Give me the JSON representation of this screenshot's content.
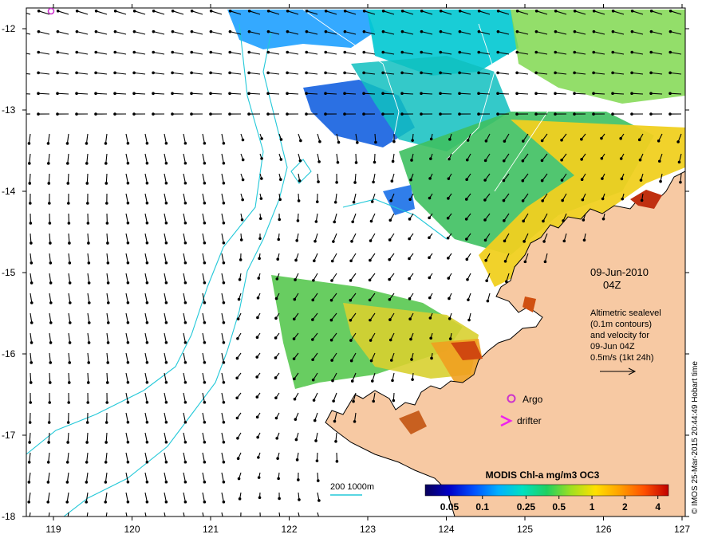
{
  "map": {
    "lon_ticks": [
      "119",
      "120",
      "121",
      "122",
      "123",
      "124",
      "125",
      "126",
      "127"
    ],
    "lat_ticks": [
      "-12",
      "-13",
      "-14",
      "-15",
      "-16",
      "-17",
      "-18"
    ],
    "colors": {
      "land": "#f7c9a3",
      "coastline": "#000000",
      "bathymetry_contour": "#22c8d8",
      "sealevel_contour": "#ffffff",
      "argo_marker": "#cc33cc",
      "drifter_marker": "#ee22ee",
      "arrows": "#000000"
    }
  },
  "date_label": {
    "date": "09-Jun-2010",
    "time": "04Z"
  },
  "info": {
    "lines": [
      "Altimetric sealevel",
      "(0.1m contours)",
      "and velocity for",
      "09-Jun 04Z",
      "0.5m/s (1kt 24h)"
    ]
  },
  "legend": {
    "argo": "Argo",
    "drifter": "drifter",
    "bathymetry": "200  1000m"
  },
  "colorbar": {
    "title": "MODIS Chl-a mg/m3 OC3",
    "tick_labels": [
      "0.05",
      "0.1",
      "0.25",
      "0.5",
      "1",
      "2",
      "4"
    ],
    "tick_values": [
      0.05,
      0.1,
      0.25,
      0.5,
      1,
      2,
      4
    ],
    "range": [
      0.03,
      5
    ],
    "colors": [
      "#08005a",
      "#0000c8",
      "#0050ff",
      "#00b0ff",
      "#00e0c0",
      "#20d060",
      "#a0e020",
      "#ffe000",
      "#ffa000",
      "#ff5000",
      "#c00000"
    ]
  },
  "credit": "© IMOS 25-Mar-2015 20:44:49 Hobart time"
}
